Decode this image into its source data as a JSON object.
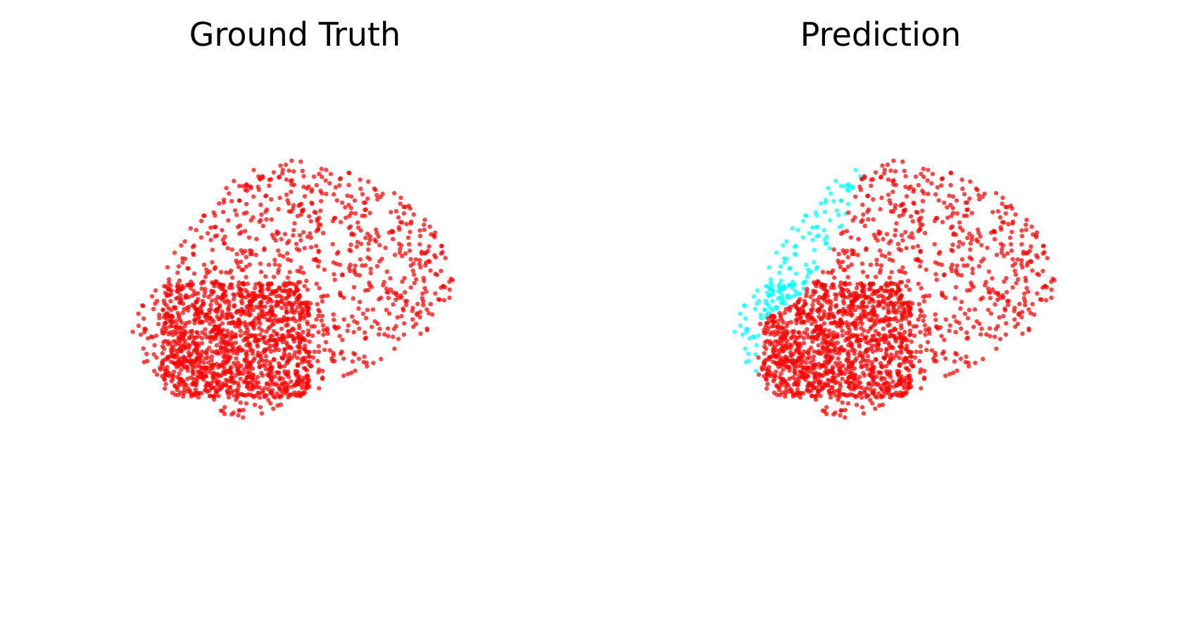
{
  "figure": {
    "background": "#ffffff",
    "colors": {
      "class_a": "#ff0000",
      "class_b": "#00ffff"
    }
  },
  "chart_data": [
    {
      "type": "scatter",
      "title": "Ground Truth",
      "projection": "3d",
      "axes_visible": false,
      "grid": false,
      "legend": "none",
      "series": [
        {
          "color": "#ff0000",
          "count": 2000
        }
      ]
    },
    {
      "type": "scatter",
      "title": "Prediction",
      "projection": "3d",
      "axes_visible": false,
      "grid": false,
      "legend": "none",
      "series": [
        {
          "color": "#ff0000",
          "count": 1300
        },
        {
          "color": "#00ffff",
          "count": 700
        }
      ]
    }
  ]
}
